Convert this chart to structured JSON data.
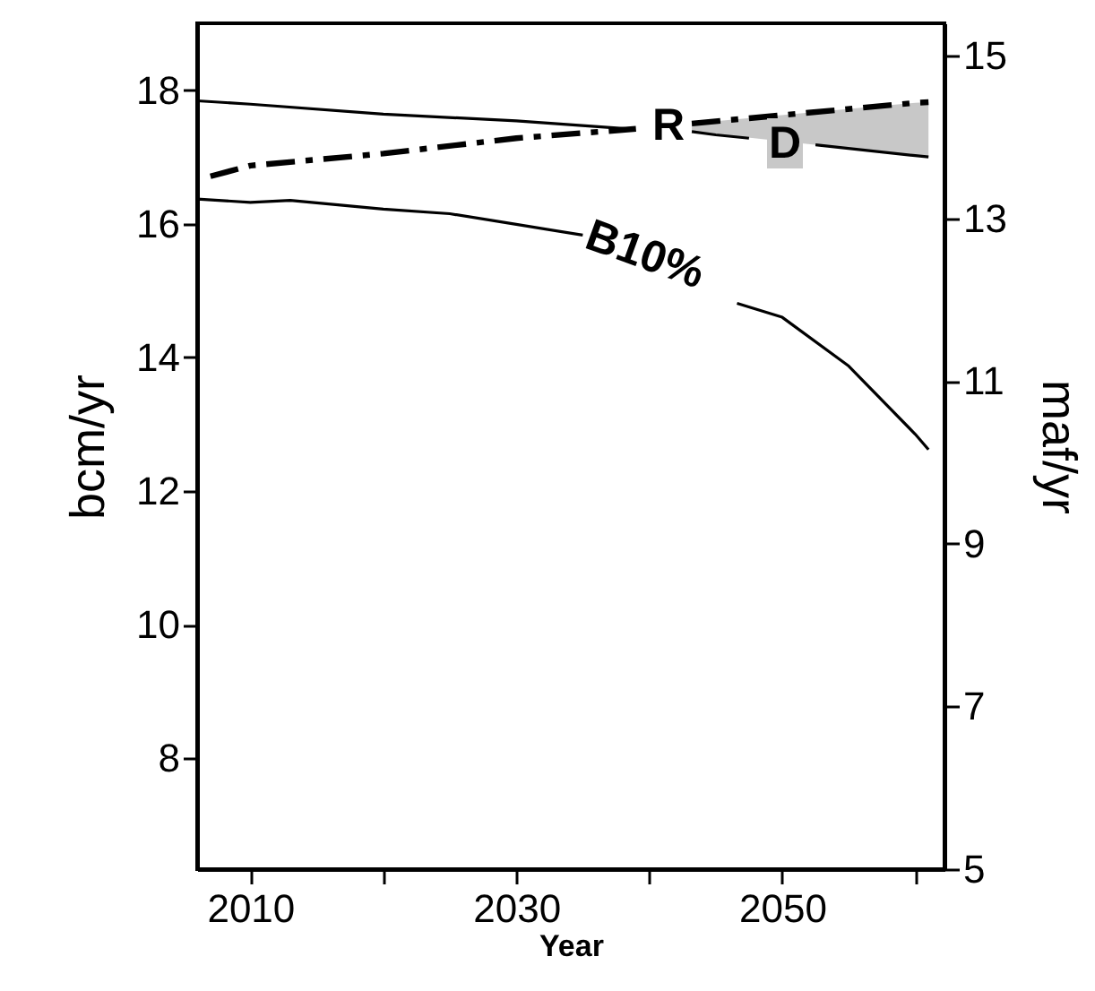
{
  "chart_data": {
    "type": "line",
    "xlabel": "Year",
    "ylabel": "bcm/yr",
    "y2label": "maf/yr",
    "xlim": [
      2006,
      2062.2
    ],
    "xticks": [
      2010,
      {
        "value": 2020,
        "label": null
      },
      2030,
      {
        "value": 2040,
        "label": null
      },
      2050,
      {
        "value": 2060,
        "label": null
      }
    ],
    "ylim": [
      6.34,
      19
    ],
    "yticks": [
      8,
      10,
      12,
      14,
      16,
      18
    ],
    "y2lim": [
      5,
      15.4
    ],
    "y2ticks": [
      5,
      7,
      9,
      11,
      13,
      15
    ],
    "series": [
      {
        "color": "#000000",
        "line_style": "solid",
        "x": [
          2006,
          2010,
          2020,
          2030,
          2038.5
        ],
        "values": [
          17.84,
          17.79,
          17.64,
          17.54,
          17.42
        ]
      },
      {
        "color": "#000000",
        "line_style": "solid",
        "x": [
          2043.2,
          2045,
          2047.5
        ],
        "values": [
          17.38,
          17.33,
          17.28
        ]
      },
      {
        "color": "#000000",
        "line_style": "solid",
        "x": [
          2052.5,
          2060,
          2061
        ],
        "values": [
          17.18,
          17.02,
          17.0
        ]
      },
      {
        "color": "#000000",
        "line_style": "dashed",
        "x": [
          2007,
          2010,
          2020,
          2030,
          2039
        ],
        "values": [
          16.71,
          16.87,
          17.05,
          17.28,
          17.42
        ]
      },
      {
        "color": "#000000",
        "line_style": "dashed",
        "x": [
          2043.2,
          2060,
          2061
        ],
        "values": [
          17.5,
          17.81,
          17.82
        ],
        "lower": [
          17.38,
          17.02,
          17.0
        ],
        "upper": [
          17.5,
          17.81,
          17.82
        ]
      },
      {
        "color": "#000000",
        "line_style": "solid",
        "x": [
          2006,
          2010,
          2013,
          2020,
          2025,
          2030,
          2035
        ],
        "values": [
          16.37,
          16.32,
          16.35,
          16.22,
          16.15,
          15.99,
          15.83
        ]
      },
      {
        "color": "#000000",
        "line_style": "solid",
        "x": [
          2046.6,
          2050,
          2055,
          2060,
          2061
        ],
        "values": [
          14.81,
          14.6,
          13.87,
          12.85,
          12.62
        ]
      }
    ],
    "annotations": [
      "R",
      "D",
      "B10%"
    ]
  }
}
